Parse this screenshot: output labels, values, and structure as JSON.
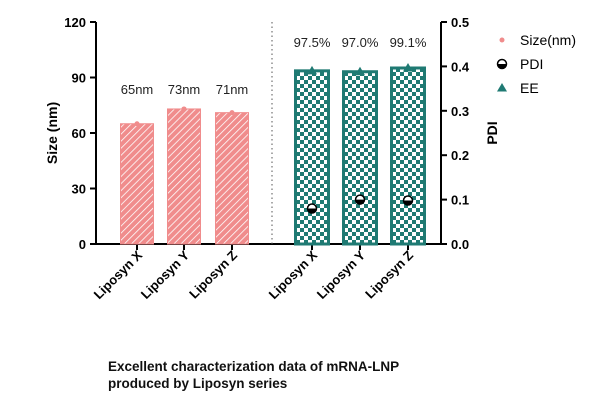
{
  "chart_data": {
    "type": "bar",
    "left_panel": {
      "categories": [
        "Liposyn X",
        "Liposyn Y",
        "Liposyn Z"
      ],
      "values": [
        65,
        73,
        71
      ],
      "value_labels": [
        "65nm",
        "73nm",
        "71nm"
      ],
      "series_name": "Size(nm)",
      "color": "#f08c8c",
      "pattern": "diagonal-hatch"
    },
    "right_panel": {
      "categories": [
        "Liposyn X",
        "Liposyn Y",
        "Liposyn Z"
      ],
      "ee_values": [
        97.5,
        97.0,
        99.1
      ],
      "ee_labels": [
        "97.5%",
        "97.0%",
        "99.1%"
      ],
      "pdi_values": [
        0.08,
        0.1,
        0.098
      ],
      "ee_series_name": "EE",
      "pdi_series_name": "PDI",
      "color": "#1f7a73",
      "pattern": "checkerboard"
    },
    "y_left": {
      "label": "Size (nm)",
      "range": [
        0,
        120
      ],
      "ticks": [
        "0",
        "30",
        "60",
        "90",
        "120"
      ]
    },
    "y_right": {
      "label": "PDI",
      "range": [
        0,
        0.5
      ],
      "ticks": [
        "0.0",
        "0.1",
        "0.2",
        "0.3",
        "0.4",
        "0.5"
      ]
    },
    "legend": {
      "placement": "right",
      "items": [
        {
          "label": "Size(nm)",
          "marker": "dot",
          "color": "#f08c8c"
        },
        {
          "label": "PDI",
          "marker": "half-circle",
          "color": "#000000"
        },
        {
          "label": "EE",
          "marker": "triangle",
          "color": "#1f7a73"
        }
      ]
    },
    "grid": false
  },
  "caption": {
    "line1": "Excellent characterization data of mRNA-LNP",
    "line2": "produced by Liposyn series"
  }
}
